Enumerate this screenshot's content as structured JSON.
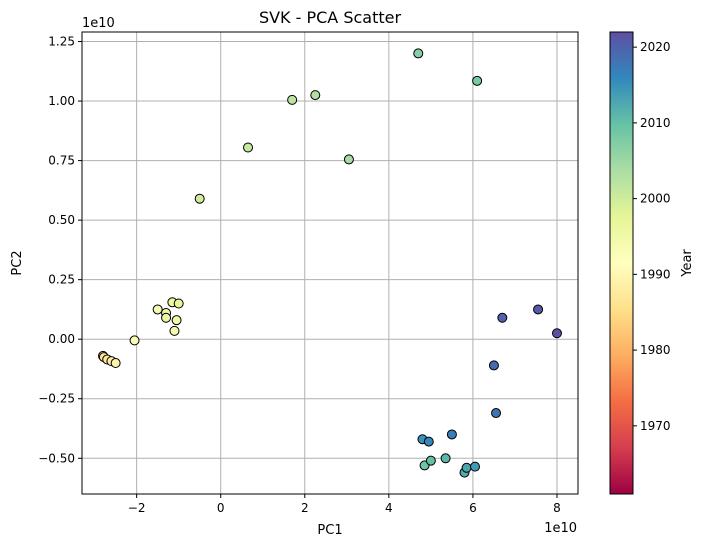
{
  "chart_data": {
    "type": "scatter",
    "title": "SVK - PCA Scatter",
    "xlabel": "PC1",
    "ylabel": "PC2",
    "x_offset_label": "1e10",
    "y_offset_label": "1e10",
    "xlim": [
      -3.3,
      8.5
    ],
    "ylim": [
      -0.65,
      1.29
    ],
    "xticks": [
      -2,
      0,
      2,
      4,
      6,
      8
    ],
    "xtick_labels": [
      "−2",
      "0",
      "2",
      "4",
      "6",
      "8"
    ],
    "yticks": [
      -0.5,
      -0.25,
      0.0,
      0.25,
      0.5,
      0.75,
      1.0,
      1.25
    ],
    "ytick_labels": [
      "−0.50",
      "−0.25",
      "0.00",
      "0.25",
      "0.50",
      "0.75",
      "1.00",
      "1.25"
    ],
    "grid": true,
    "colorbar": {
      "label": "Year",
      "colormap": "Spectral",
      "range": [
        1961,
        2022
      ],
      "ticks": [
        1970,
        1980,
        1990,
        2000,
        2010,
        2020
      ],
      "tick_labels": [
        "1970",
        "1980",
        "1990",
        "2000",
        "2010",
        "2020"
      ]
    },
    "points": [
      {
        "x": -2.8,
        "y": -0.07,
        "year": 1985
      },
      {
        "x": -2.78,
        "y": -0.075,
        "year": 1986
      },
      {
        "x": -2.7,
        "y": -0.085,
        "year": 1987
      },
      {
        "x": -2.6,
        "y": -0.092,
        "year": 1988
      },
      {
        "x": -2.5,
        "y": -0.1,
        "year": 1989
      },
      {
        "x": -2.05,
        "y": -0.005,
        "year": 1993
      },
      {
        "x": -1.5,
        "y": 0.125,
        "year": 1994
      },
      {
        "x": -1.3,
        "y": 0.11,
        "year": 1995
      },
      {
        "x": -1.3,
        "y": 0.09,
        "year": 1996
      },
      {
        "x": -1.15,
        "y": 0.155,
        "year": 1996
      },
      {
        "x": -1.0,
        "y": 0.15,
        "year": 1997
      },
      {
        "x": -1.05,
        "y": 0.08,
        "year": 1995
      },
      {
        "x": -1.1,
        "y": 0.035,
        "year": 1994
      },
      {
        "x": -0.5,
        "y": 0.59,
        "year": 2000
      },
      {
        "x": 0.65,
        "y": 0.805,
        "year": 2001
      },
      {
        "x": 1.7,
        "y": 1.005,
        "year": 2002
      },
      {
        "x": 2.25,
        "y": 1.025,
        "year": 2003
      },
      {
        "x": 3.05,
        "y": 0.755,
        "year": 2004
      },
      {
        "x": 4.7,
        "y": 1.2,
        "year": 2007
      },
      {
        "x": 6.1,
        "y": 1.085,
        "year": 2008
      },
      {
        "x": 4.85,
        "y": -0.53,
        "year": 2009
      },
      {
        "x": 5.0,
        "y": -0.51,
        "year": 2010
      },
      {
        "x": 5.35,
        "y": -0.5,
        "year": 2011
      },
      {
        "x": 5.8,
        "y": -0.56,
        "year": 2012
      },
      {
        "x": 5.85,
        "y": -0.54,
        "year": 2013
      },
      {
        "x": 6.05,
        "y": -0.535,
        "year": 2014
      },
      {
        "x": 4.8,
        "y": -0.42,
        "year": 2015
      },
      {
        "x": 4.95,
        "y": -0.43,
        "year": 2016
      },
      {
        "x": 5.5,
        "y": -0.4,
        "year": 2017
      },
      {
        "x": 6.55,
        "y": -0.31,
        "year": 2018
      },
      {
        "x": 6.5,
        "y": -0.11,
        "year": 2019
      },
      {
        "x": 6.7,
        "y": 0.09,
        "year": 2020
      },
      {
        "x": 7.55,
        "y": 0.125,
        "year": 2021
      },
      {
        "x": 8.0,
        "y": 0.025,
        "year": 2022
      }
    ]
  }
}
